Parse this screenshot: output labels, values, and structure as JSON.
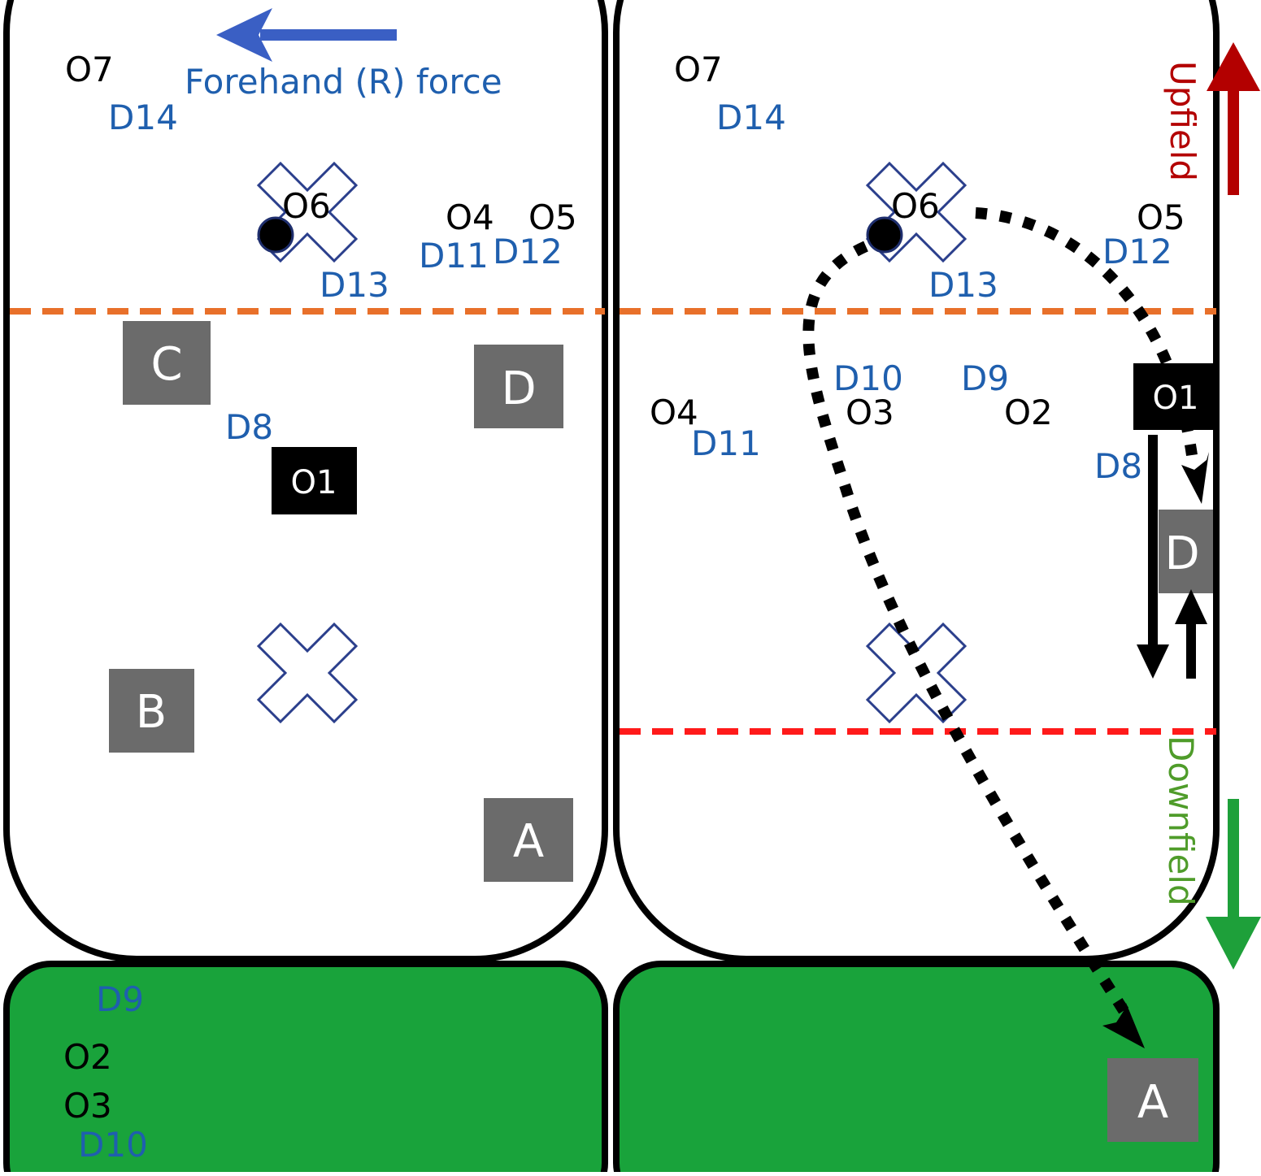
{
  "colors": {
    "offense": "#000000",
    "defense": "#1f5fae",
    "endzone": "#19a33b",
    "orange_line": "#e8702a",
    "red_line": "#ff1a1a",
    "upfield": "#b30000",
    "downfield": "#1ea03a",
    "force_arrow": "#3a5fc4",
    "cone_box": "#6b6b6b"
  },
  "left_field": {
    "force_label": "Forehand (R) force",
    "offense": {
      "o1": "O1",
      "o2": "O2",
      "o3": "O3",
      "o4": "O4",
      "o5": "O5",
      "o6": "O6",
      "o7": "O7"
    },
    "defense": {
      "d8": "D8",
      "d9": "D9",
      "d10": "D10",
      "d11": "D11",
      "d12": "D12",
      "d13": "D13",
      "d14": "D14"
    },
    "cones": {
      "a": "A",
      "b": "B",
      "c": "C",
      "d": "D"
    }
  },
  "right_field": {
    "upfield_label": "Upfield",
    "downfield_label": "Downfield",
    "offense": {
      "o1": "O1",
      "o2": "O2",
      "o3": "O3",
      "o4": "O4",
      "o5": "O5",
      "o6": "O6",
      "o7": "O7"
    },
    "defense": {
      "d8": "D8",
      "d9": "D9",
      "d10": "D10",
      "d11": "D11",
      "d12": "D12",
      "d13": "D13",
      "d14": "D14"
    },
    "cones": {
      "a": "A",
      "d": "D"
    }
  }
}
